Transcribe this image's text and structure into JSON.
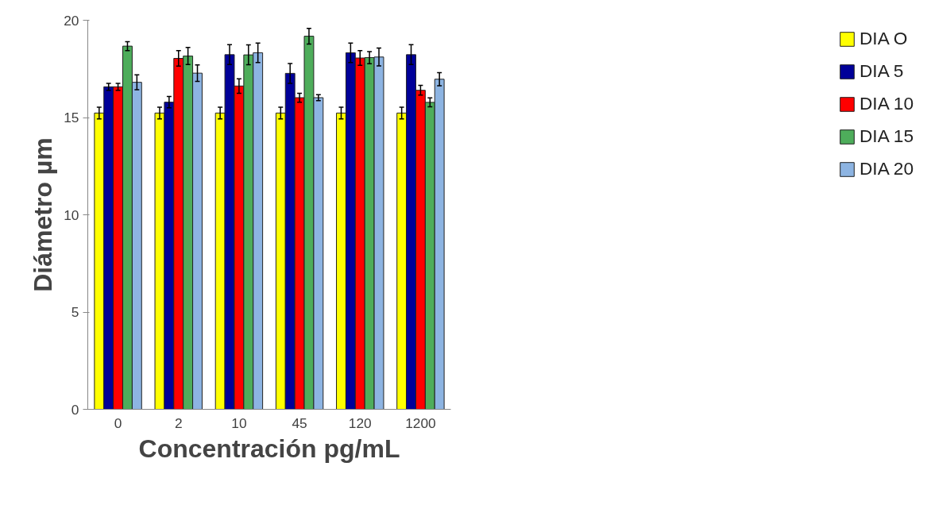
{
  "chart_data": {
    "type": "bar",
    "xlabel": "Concentración pg/mL",
    "ylabel": "Diámetro µm",
    "categories": [
      "0",
      "2",
      "10",
      "45",
      "120",
      "1200"
    ],
    "series": [
      {
        "name": "DIA O",
        "color": "#ffff00",
        "values": [
          15.23,
          15.23,
          15.23,
          15.23,
          15.23,
          15.23
        ],
        "errors": [
          0.3,
          0.3,
          0.3,
          0.3,
          0.3,
          0.3
        ]
      },
      {
        "name": "DIA 5",
        "color": "#000099",
        "values": [
          16.58,
          15.79,
          18.23,
          17.27,
          18.33,
          18.23
        ],
        "errors": [
          0.18,
          0.29,
          0.51,
          0.51,
          0.5,
          0.51
        ]
      },
      {
        "name": "DIA 10",
        "color": "#ff0000",
        "values": [
          16.58,
          18.04,
          16.62,
          16.02,
          18.06,
          16.4
        ],
        "errors": [
          0.18,
          0.4,
          0.37,
          0.23,
          0.38,
          0.25
        ]
      },
      {
        "name": "DIA 15",
        "color": "#4ead5b",
        "values": [
          18.67,
          18.16,
          18.22,
          19.18,
          18.08,
          15.78
        ],
        "errors": [
          0.23,
          0.44,
          0.51,
          0.4,
          0.31,
          0.23
        ]
      },
      {
        "name": "DIA 20",
        "color": "#8db4e2",
        "values": [
          16.81,
          17.28,
          18.33,
          16.02,
          18.11,
          16.97
        ],
        "errors": [
          0.38,
          0.42,
          0.5,
          0.15,
          0.46,
          0.34
        ]
      }
    ],
    "ylim": [
      0,
      20
    ],
    "yticks": [
      0,
      5,
      10,
      15,
      20
    ],
    "grid": false,
    "legend": "right"
  }
}
